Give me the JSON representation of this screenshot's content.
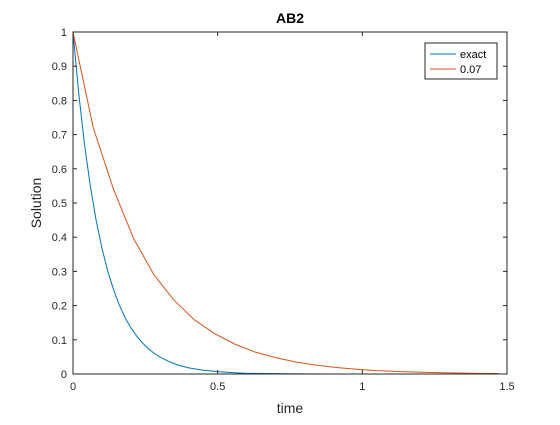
{
  "chart_data": {
    "type": "line",
    "title": "AB2",
    "xlabel": "time",
    "ylabel": "Solution",
    "xlim": [
      0,
      1.5
    ],
    "ylim": [
      0,
      1
    ],
    "xticks": [
      0,
      0.5,
      1,
      1.5
    ],
    "xtick_labels": [
      "0",
      "0.5",
      "1",
      "1.5"
    ],
    "yticks": [
      0,
      0.1,
      0.2,
      0.3,
      0.4,
      0.5,
      0.6,
      0.7,
      0.8,
      0.9,
      1
    ],
    "ytick_labels": [
      "0",
      "0.1",
      "0.2",
      "0.3",
      "0.4",
      "0.5",
      "0.6",
      "0.7",
      "0.8",
      "0.9",
      "1"
    ],
    "grid": false,
    "legend_position": "top-right",
    "series": [
      {
        "name": "exact",
        "color": "#0072BD",
        "x": [
          0,
          0.02,
          0.04,
          0.06,
          0.08,
          0.1,
          0.12,
          0.14,
          0.16,
          0.18,
          0.2,
          0.22,
          0.24,
          0.26,
          0.28,
          0.3,
          0.33,
          0.36,
          0.4,
          0.45,
          0.5,
          0.55,
          0.6,
          0.7,
          0.8,
          0.9,
          1.0,
          1.1,
          1.2,
          1.3,
          1.4,
          1.5
        ],
        "y": [
          1,
          0.819,
          0.67,
          0.549,
          0.449,
          0.368,
          0.301,
          0.247,
          0.202,
          0.165,
          0.135,
          0.111,
          0.091,
          0.074,
          0.061,
          0.05,
          0.037,
          0.027,
          0.018,
          0.011,
          0.007,
          0.004,
          0.002,
          0.001,
          0.0003,
          0.0001,
          5e-05,
          2e-05,
          1e-05,
          0,
          0,
          0
        ]
      },
      {
        "name": "0.07",
        "color": "#D95319",
        "x": [
          0,
          0.07,
          0.14,
          0.21,
          0.28,
          0.35,
          0.42,
          0.49,
          0.56,
          0.63,
          0.7,
          0.77,
          0.84,
          0.91,
          0.98,
          1.05,
          1.12,
          1.19,
          1.26,
          1.33,
          1.4,
          1.47
        ],
        "y": [
          1,
          0.72,
          0.54,
          0.395,
          0.29,
          0.215,
          0.158,
          0.118,
          0.087,
          0.064,
          0.048,
          0.035,
          0.026,
          0.019,
          0.014,
          0.01,
          0.0075,
          0.0055,
          0.004,
          0.003,
          0.002,
          0.0015
        ]
      }
    ]
  }
}
